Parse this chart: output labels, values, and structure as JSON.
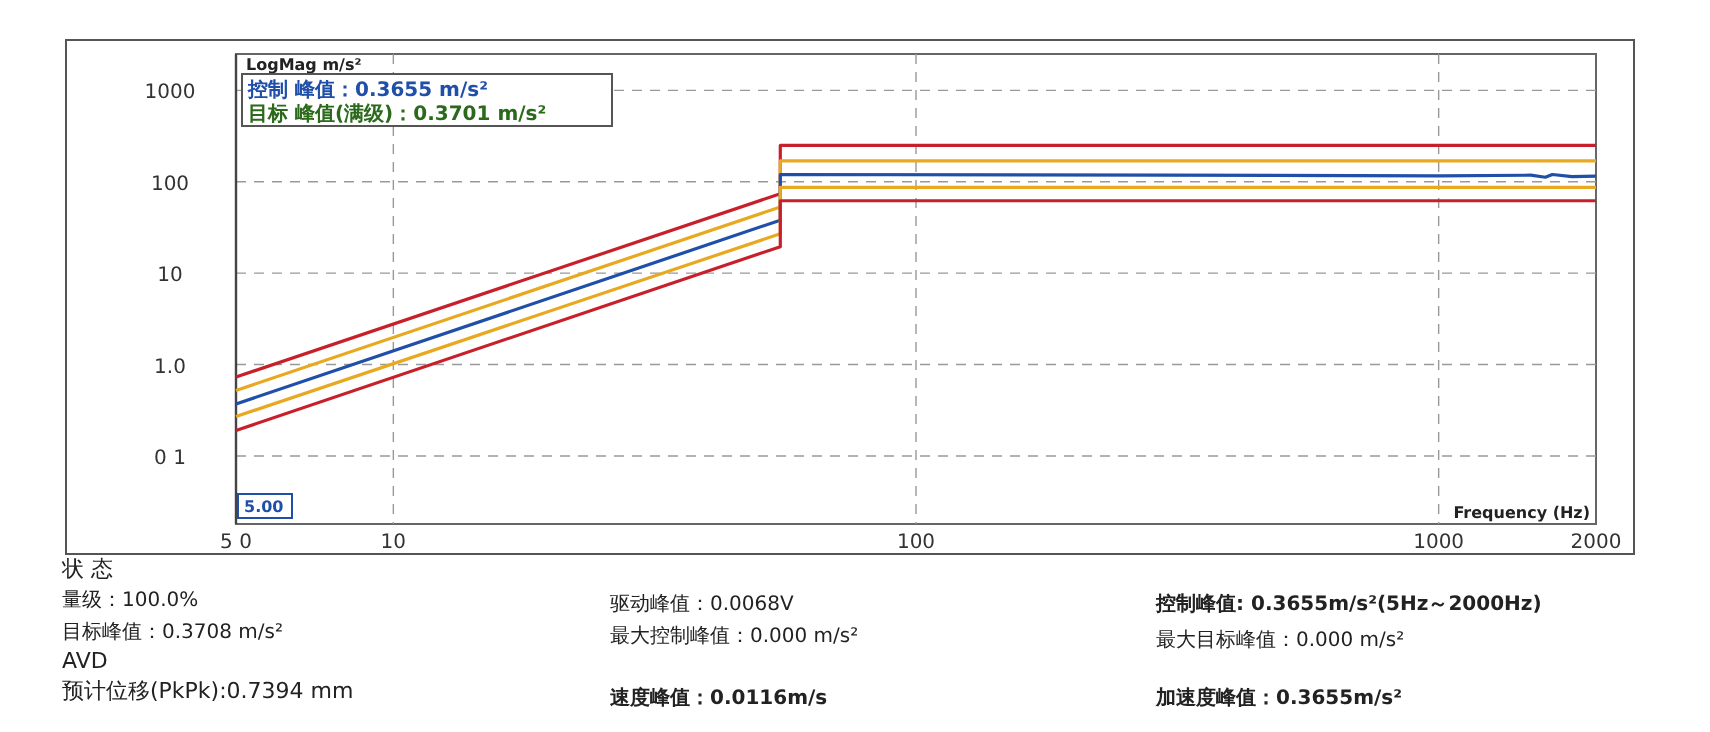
{
  "chart_data": {
    "type": "line",
    "xlabel": "Frequency (Hz)",
    "ylabel": "LogMag m/s²",
    "log": "xy",
    "grid": true,
    "marker": "none",
    "line_style": "solid",
    "xlim": [
      5,
      2000
    ],
    "ylim": [
      0.018,
      2500
    ],
    "xticks": [
      {
        "value": 5,
        "label": "5 0"
      },
      10,
      100,
      1000,
      2000
    ],
    "yticks": [
      {
        "value": 0.1,
        "label": "0 1"
      },
      {
        "value": 1,
        "label": "1.0"
      },
      10,
      100,
      1000
    ],
    "series": [
      {
        "color": "#c8202a",
        "x": [
          5,
          55,
          55,
          2000
        ],
        "values": [
          0.73,
          74,
          250,
          250
        ]
      },
      {
        "color": "#e8a820",
        "x": [
          5,
          55,
          55,
          2000
        ],
        "values": [
          0.52,
          53,
          169,
          169
        ]
      },
      {
        "color": "#1f4fa8",
        "x": [
          5,
          55,
          55,
          300,
          1000,
          1500,
          1600,
          1650,
          1800,
          2000
        ],
        "values": [
          0.37,
          38,
          120,
          118,
          116,
          118,
          112,
          120,
          114,
          115
        ]
      },
      {
        "color": "#e8a820",
        "x": [
          5,
          55,
          55,
          2000
        ],
        "values": [
          0.27,
          27,
          87,
          87
        ]
      },
      {
        "color": "#c8202a",
        "x": [
          5,
          55,
          55,
          2000
        ],
        "values": [
          0.19,
          19.5,
          62,
          62
        ]
      }
    ],
    "annotations": [
      "控制 峰值：0.3655 m/s²",
      "目标 峰值(满级)：0.3701 m/s²",
      "5.00",
      "状 态",
      "量级：100.0%",
      "目标峰值：0.3708 m/s²",
      "AVD",
      "预计位移(PkPk):0.7394 mm",
      "驱动峰值：0.0068V",
      "最大控制峰值：0.000 m/s²",
      "速度峰值：0.0116m/s",
      "控制峰值:   0.3655m/s²(5Hz～2000Hz)",
      "最大目标峰值：0.000 m/s²",
      "加速度峰值：0.3655m/s²"
    ]
  }
}
